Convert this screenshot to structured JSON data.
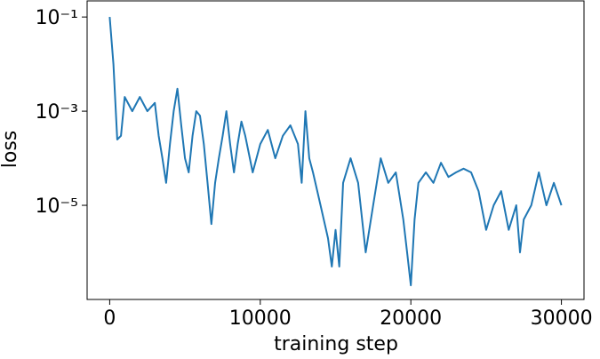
{
  "chart_data": {
    "type": "line",
    "xlabel": "training step",
    "ylabel": "loss",
    "color": "#1f77b4",
    "yscale": "log",
    "xlim": [
      -1500,
      31500
    ],
    "xticks": [
      0,
      10000,
      20000,
      30000
    ],
    "ylim": [
      1e-07,
      0.22
    ],
    "yticks": [
      {
        "value": 0.1,
        "label": "10⁻¹"
      },
      {
        "value": 0.001,
        "label": "10⁻³"
      },
      {
        "value": 1e-05,
        "label": "10⁻⁵"
      }
    ],
    "x": [
      0,
      250,
      500,
      750,
      1000,
      1500,
      2000,
      2500,
      3000,
      3250,
      3500,
      3750,
      4000,
      4250,
      4500,
      4750,
      5000,
      5250,
      5500,
      5750,
      6000,
      6250,
      6500,
      6750,
      7000,
      7250,
      7500,
      7750,
      8000,
      8250,
      8500,
      8750,
      9000,
      9500,
      10000,
      10500,
      11000,
      11500,
      12000,
      12500,
      12750,
      13000,
      13250,
      13500,
      14000,
      14500,
      14750,
      15000,
      15250,
      15500,
      16000,
      16500,
      17000,
      17500,
      18000,
      18500,
      19000,
      19500,
      19750,
      20000,
      20250,
      20500,
      21000,
      21500,
      22000,
      22500,
      23000,
      23500,
      24000,
      24500,
      25000,
      25500,
      26000,
      26500,
      27000,
      27250,
      27500,
      28000,
      28500,
      29000,
      29500,
      30000
    ],
    "values": [
      0.1,
      0.01,
      0.00025,
      0.0003,
      0.002,
      0.001,
      0.002,
      0.001,
      0.0015,
      0.0003,
      0.0001,
      3e-05,
      0.0002,
      0.001,
      0.003,
      0.0005,
      0.0001,
      5e-05,
      0.0003,
      0.001,
      0.0008,
      0.0002,
      3e-05,
      4e-06,
      3e-05,
      0.0001,
      0.0003,
      0.001,
      0.0002,
      5e-05,
      0.0002,
      0.0006,
      0.0003,
      5e-05,
      0.0002,
      0.0004,
      0.0001,
      0.0003,
      0.0005,
      0.0002,
      3e-05,
      0.001,
      0.0001,
      5e-05,
      1e-05,
      2e-06,
      5e-07,
      3e-06,
      5e-07,
      3e-05,
      0.0001,
      3e-05,
      1e-06,
      1e-05,
      0.0001,
      3e-05,
      5e-05,
      5e-06,
      1e-06,
      2e-07,
      5e-06,
      3e-05,
      5e-05,
      3e-05,
      8e-05,
      4e-05,
      5e-05,
      6e-05,
      5e-05,
      2e-05,
      3e-06,
      1e-05,
      2e-05,
      3e-06,
      1e-05,
      1e-06,
      5e-06,
      1e-05,
      5e-05,
      1e-05,
      3e-05,
      1e-05
    ]
  }
}
